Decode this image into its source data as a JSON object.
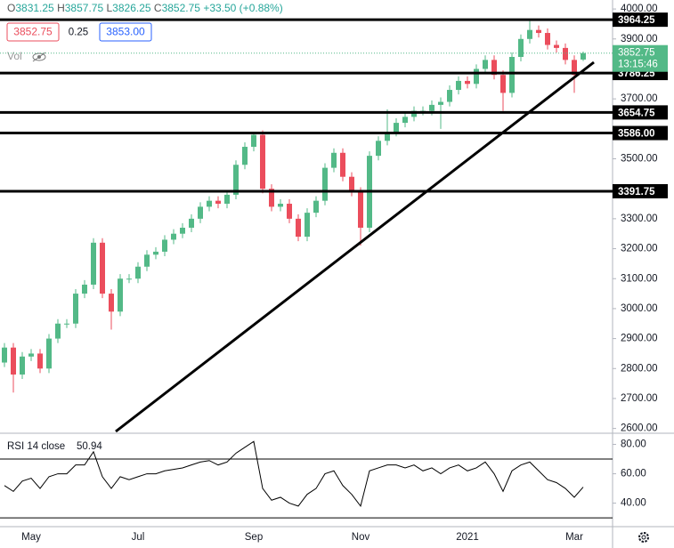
{
  "chart_data": {
    "type": "candlestick",
    "ohlc_labels": [
      "O",
      "H",
      "L",
      "C"
    ],
    "change": "+33.50 (+0.88%)",
    "quote": {
      "bid": 3852.75,
      "spread": 0.25,
      "ask": {
        "value": 3853,
        "label": "3853.00"
      }
    },
    "volume_label": "Vol",
    "countdown": "13:15:46",
    "up_color": "#53b987",
    "down_color": "#eb4d5c",
    "categories": [
      null,
      null,
      null,
      "May",
      null,
      null,
      null,
      null,
      null,
      null,
      null,
      null,
      null,
      null,
      null,
      "Jul",
      null,
      null,
      null,
      null,
      null,
      null,
      null,
      null,
      null,
      null,
      null,
      null,
      "Sep",
      null,
      null,
      null,
      null,
      null,
      null,
      null,
      null,
      null,
      null,
      null,
      "Nov",
      null,
      null,
      null,
      null,
      null,
      null,
      null,
      null,
      null,
      null,
      null,
      "2021",
      null,
      null,
      null,
      null,
      null,
      null,
      null,
      null,
      null,
      null,
      null,
      "Mar",
      null
    ],
    "open": [
      2820,
      2870,
      2780,
      2840,
      2850,
      2800,
      2900,
      2950,
      2950,
      3050,
      3080,
      3220,
      3050,
      2990,
      3100,
      3100,
      3140,
      3180,
      3190,
      3230,
      3250,
      3270,
      3300,
      3340,
      3360,
      3350,
      3380,
      3480,
      3540,
      3580,
      3400,
      3340,
      3350,
      3300,
      3240,
      3320,
      3360,
      3470,
      3520,
      3440,
      3390,
      3270,
      3510,
      3560,
      3590,
      3620,
      3640,
      3660,
      3660,
      3680,
      3690,
      3730,
      3760,
      3750,
      3800,
      3830,
      3780,
      3720,
      3840,
      3900,
      3930,
      3920,
      3880,
      3870,
      3830,
      3831.25
    ],
    "high": [
      2885,
      2885,
      2855,
      2865,
      2865,
      2915,
      2965,
      2965,
      3065,
      3095,
      3235,
      3235,
      3065,
      3115,
      3115,
      3155,
      3195,
      3205,
      3245,
      3265,
      3285,
      3315,
      3355,
      3375,
      3375,
      3395,
      3495,
      3555,
      3588,
      3595,
      3415,
      3365,
      3365,
      3315,
      3335,
      3375,
      3485,
      3535,
      3535,
      3455,
      3405,
      3525,
      3575,
      3665,
      3635,
      3655,
      3675,
      3675,
      3695,
      3705,
      3745,
      3775,
      3775,
      3815,
      3845,
      3845,
      3795,
      3855,
      3915,
      3960,
      3945,
      3935,
      3895,
      3885,
      3845,
      3857.75
    ],
    "low": [
      2805,
      2720,
      2765,
      2825,
      2785,
      2785,
      2885,
      2935,
      2935,
      3035,
      3065,
      3035,
      2930,
      2975,
      3085,
      3085,
      3125,
      3165,
      3175,
      3215,
      3235,
      3255,
      3285,
      3325,
      3335,
      3335,
      3365,
      3465,
      3525,
      3385,
      3325,
      3325,
      3285,
      3225,
      3225,
      3305,
      3345,
      3455,
      3425,
      3375,
      3210,
      3255,
      3495,
      3545,
      3575,
      3605,
      3625,
      3645,
      3645,
      3600,
      3675,
      3715,
      3735,
      3735,
      3785,
      3765,
      3660,
      3705,
      3825,
      3885,
      3905,
      3865,
      3855,
      3815,
      3720,
      3826.25
    ],
    "close": [
      2870,
      2780,
      2840,
      2850,
      2800,
      2900,
      2950,
      2950,
      3050,
      3080,
      3220,
      3050,
      2990,
      3100,
      3100,
      3140,
      3180,
      3190,
      3230,
      3250,
      3270,
      3300,
      3340,
      3360,
      3350,
      3380,
      3480,
      3540,
      3580,
      3400,
      3340,
      3350,
      3300,
      3240,
      3320,
      3360,
      3470,
      3520,
      3440,
      3390,
      3270,
      3510,
      3560,
      3590,
      3620,
      3640,
      3660,
      3660,
      3680,
      3690,
      3730,
      3760,
      3750,
      3800,
      3830,
      3780,
      3720,
      3840,
      3900,
      3930,
      3920,
      3880,
      3870,
      3830,
      3780,
      3852.75
    ],
    "ylim": [
      2590,
      4030
    ],
    "yticks": [
      {
        "value": 4000,
        "label": "4000.00"
      },
      {
        "value": 3900,
        "label": "3900.00"
      },
      {
        "value": 3700,
        "label": "3700.00"
      },
      {
        "value": 3500,
        "label": "3500.00"
      },
      {
        "value": 3300,
        "label": "3300.00"
      },
      {
        "value": 3200,
        "label": "3200.00"
      },
      {
        "value": 3100,
        "label": "3100.00"
      },
      {
        "value": 3000,
        "label": "3000.00"
      },
      {
        "value": 2900,
        "label": "2900.00"
      },
      {
        "value": 2800,
        "label": "2800.00"
      },
      {
        "value": 2700,
        "label": "2700.00"
      },
      {
        "value": 2600,
        "label": "2600.00"
      }
    ],
    "levels": [
      3964.25,
      3786.25,
      3654.75,
      {
        "value": 3586,
        "label": "3586.00"
      },
      3391.75
    ],
    "rsi": {
      "label": "RSI 14 close",
      "color": "#000000",
      "values": [
        52,
        48,
        55,
        57,
        50,
        58,
        60,
        60,
        66,
        66,
        75,
        58,
        50,
        58,
        56,
        58,
        60,
        60,
        62,
        63,
        64,
        66,
        68,
        69,
        66,
        68,
        74,
        78,
        82,
        50,
        42,
        44,
        40,
        38,
        46,
        50,
        60,
        62,
        52,
        46,
        38,
        62,
        64,
        66,
        66,
        64,
        66,
        62,
        64,
        60,
        64,
        66,
        62,
        64,
        68,
        60,
        48,
        62,
        66,
        68,
        62,
        56,
        54,
        50,
        44,
        50.94
      ],
      "ylim": [
        24,
        87.6
      ],
      "bands": [
        70,
        30
      ],
      "yticks": [
        {
          "value": 80,
          "label": "80.00"
        },
        {
          "value": 60,
          "label": "60.00"
        },
        {
          "value": 40,
          "label": "40.00"
        }
      ]
    }
  }
}
